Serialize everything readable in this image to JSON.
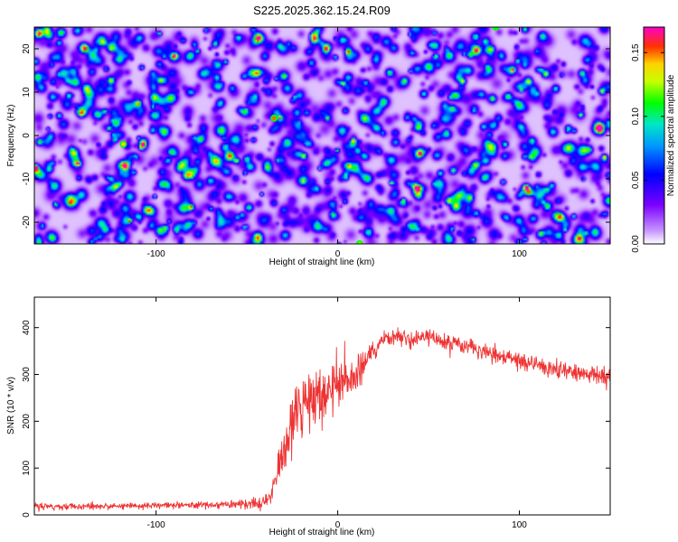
{
  "chart_data": [
    {
      "type": "heatmap",
      "title": "S225.2025.362.15.24.R09",
      "xlabel": "Height of straight line (km)",
      "ylabel": "Frequency (Hz)",
      "xlim": [
        -167,
        150
      ],
      "ylim": [
        -25,
        25
      ],
      "xticks": [
        -100,
        0,
        100
      ],
      "xtick_labels": [
        "-100",
        "0",
        "100"
      ],
      "yticks": [
        -20,
        -10,
        0,
        10,
        20
      ],
      "ytick_labels": [
        "-20",
        "-10",
        "0",
        "10",
        "20"
      ],
      "grid": false,
      "colorbar": {
        "label": "Normalized spectral amplitude",
        "range": [
          0,
          0.17
        ],
        "ticks": [
          0,
          0.05,
          0.1,
          0.15
        ],
        "tick_labels": [
          "0.00",
          "0.05",
          "0.10",
          "0.15"
        ]
      },
      "z_description": "random noise-like spectral amplitudes, mostly 0.01-0.05 with scattered peaks up to ~0.15",
      "peaks": [
        {
          "x": -118,
          "y": -2,
          "z": 0.14
        },
        {
          "x": -35,
          "y": 4,
          "z": 0.15
        },
        {
          "x": 12,
          "y": -25,
          "z": 0.12
        },
        {
          "x": 87,
          "y": 25,
          "z": 0.11
        }
      ]
    },
    {
      "type": "line",
      "title": "",
      "xlabel": "Height of straight line (km)",
      "ylabel": "SNR (10 * v/v)",
      "xlim": [
        -167,
        150
      ],
      "ylim": [
        0,
        465
      ],
      "xticks": [
        -100,
        0,
        100
      ],
      "xtick_labels": [
        "-100",
        "0",
        "100"
      ],
      "yticks": [
        0,
        100,
        200,
        300,
        400
      ],
      "ytick_labels": [
        "0",
        "100",
        "200",
        "300",
        "400"
      ],
      "grid": false,
      "series": [
        {
          "name": "SNR",
          "color": "#ee3333",
          "x": [
            -167,
            -140,
            -120,
            -100,
            -80,
            -60,
            -50,
            -40,
            -35,
            -30,
            -25,
            -20,
            -15,
            -10,
            -5,
            0,
            5,
            10,
            15,
            20,
            25,
            30,
            40,
            50,
            60,
            70,
            80,
            90,
            100,
            110,
            120,
            130,
            140,
            150
          ],
          "y": [
            18,
            18,
            19,
            20,
            21,
            22,
            24,
            28,
            60,
            140,
            210,
            230,
            240,
            250,
            262,
            275,
            285,
            300,
            320,
            350,
            370,
            380,
            375,
            378,
            370,
            360,
            350,
            340,
            330,
            320,
            312,
            305,
            300,
            295
          ],
          "noise": [
            8,
            8,
            8,
            8,
            9,
            11,
            13,
            14,
            30,
            60,
            70,
            75,
            75,
            70,
            65,
            60,
            55,
            50,
            40,
            30,
            25,
            22,
            22,
            22,
            22,
            22,
            22,
            22,
            22,
            22,
            22,
            22,
            22,
            22
          ]
        }
      ]
    }
  ],
  "colors": {
    "series_line": "#ee3333",
    "axis": "#000000",
    "background": "#ffffff"
  }
}
